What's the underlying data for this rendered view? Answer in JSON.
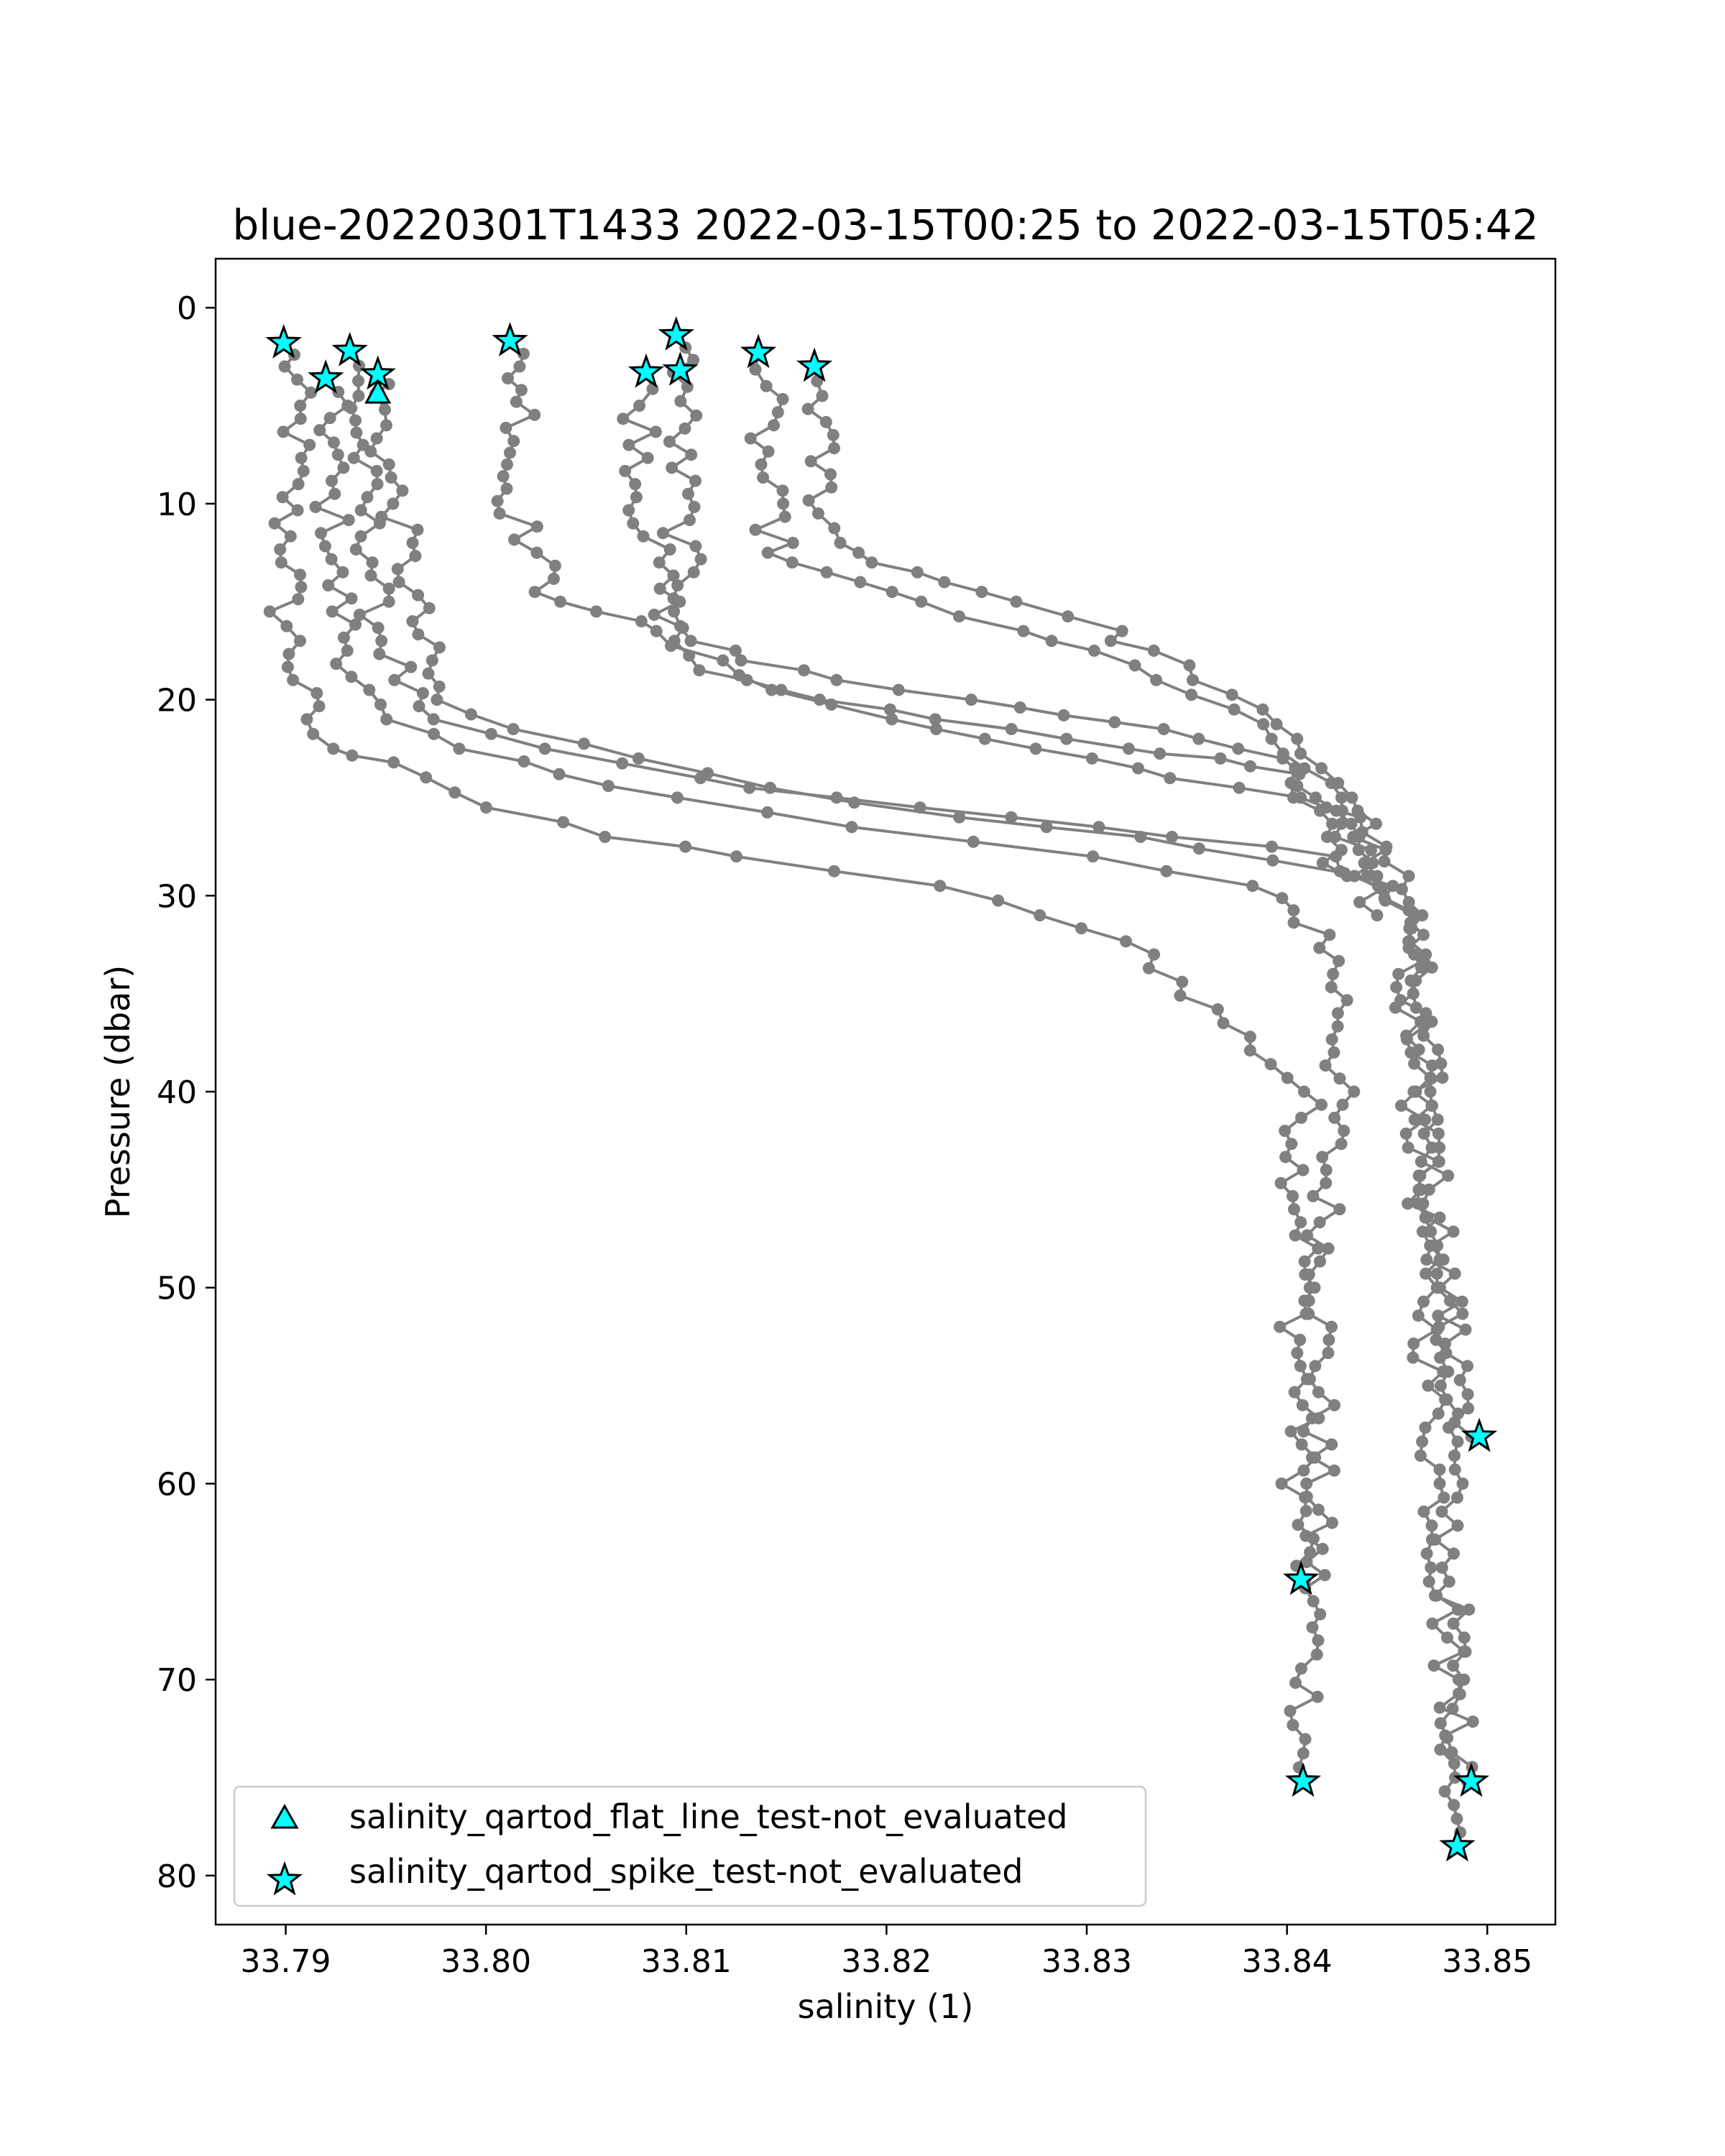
{
  "chart_data": {
    "type": "line",
    "title": "blue-20220301T1433 2022-03-15T00:25 to 2022-03-15T05:42",
    "xlabel": "salinity (1)",
    "ylabel": "Pressure (dbar)",
    "xlim": [
      33.7865,
      33.8534
    ],
    "ylim": [
      82.5,
      -2.5
    ],
    "y_inverted": true,
    "grid": false,
    "x_ticks": [
      "33.79",
      "33.80",
      "33.81",
      "33.82",
      "33.83",
      "33.84",
      "33.85"
    ],
    "x_tick_values": [
      33.79,
      33.8,
      33.81,
      33.82,
      33.83,
      33.84,
      33.85
    ],
    "y_ticks": [
      "0",
      "10",
      "20",
      "30",
      "40",
      "50",
      "60",
      "70",
      "80"
    ],
    "y_tick_values": [
      0,
      10,
      20,
      30,
      40,
      50,
      60,
      70,
      80
    ],
    "line_color": "#808080",
    "marker_color": "#00ffff",
    "legend": {
      "placement": "lower left",
      "entries": [
        {
          "label": "salinity_qartod_flat_line_test-not_evaluated",
          "marker": "triangle"
        },
        {
          "label": "salinity_qartod_spike_test-not_evaluated",
          "marker": "star"
        }
      ]
    },
    "series": [
      {
        "points": [
          [
            33.79,
            1.8
          ],
          [
            33.7903,
            3.0
          ],
          [
            33.7904,
            5.0
          ],
          [
            33.7905,
            7.0
          ],
          [
            33.7902,
            9.0
          ],
          [
            33.79,
            11.0
          ],
          [
            33.7903,
            13.0
          ],
          [
            33.7899,
            15.5
          ],
          [
            33.7903,
            17.0
          ],
          [
            33.7906,
            19.0
          ],
          [
            33.7912,
            21.0
          ],
          [
            33.7918,
            22.5
          ],
          [
            33.796,
            23.2
          ],
          [
            33.8,
            25.5
          ],
          [
            33.806,
            27.0
          ],
          [
            33.813,
            28.0
          ],
          [
            33.822,
            29.5
          ],
          [
            33.828,
            31.0
          ],
          [
            33.833,
            33.0
          ],
          [
            33.837,
            36.5
          ],
          [
            33.841,
            40.0
          ],
          [
            33.8405,
            44.0
          ],
          [
            33.841,
            48.0
          ],
          [
            33.8405,
            52.0
          ],
          [
            33.8408,
            56.0
          ],
          [
            33.8406,
            60.0
          ],
          [
            33.8409,
            64.9
          ]
        ]
      },
      {
        "points": [
          [
            33.792,
            3.6
          ],
          [
            33.7922,
            5.0
          ],
          [
            33.7923,
            7.5
          ],
          [
            33.7921,
            9.5
          ],
          [
            33.7925,
            11.5
          ],
          [
            33.7923,
            13.5
          ],
          [
            33.7928,
            15.5
          ],
          [
            33.7932,
            17.5
          ],
          [
            33.7938,
            19.5
          ],
          [
            33.7945,
            21.0
          ],
          [
            33.7985,
            22.5
          ],
          [
            33.804,
            23.8
          ],
          [
            33.81,
            25.0
          ],
          [
            33.818,
            26.5
          ],
          [
            33.83,
            28.0
          ],
          [
            33.838,
            29.5
          ],
          [
            33.842,
            32.0
          ],
          [
            33.8428,
            36.0
          ],
          [
            33.8425,
            40.0
          ],
          [
            33.842,
            44.0
          ],
          [
            33.8418,
            50.0
          ],
          [
            33.8416,
            56.0
          ],
          [
            33.8414,
            62.0
          ],
          [
            33.8412,
            68.0
          ],
          [
            33.8408,
            75.2
          ]
        ]
      },
      {
        "points": [
          [
            33.7932,
            2.2
          ],
          [
            33.7935,
            4.5
          ],
          [
            33.7937,
            7.0
          ],
          [
            33.7938,
            9.0
          ],
          [
            33.794,
            11.0
          ],
          [
            33.7945,
            13.0
          ],
          [
            33.7943,
            15.0
          ],
          [
            33.795,
            17.0
          ],
          [
            33.7958,
            19.0
          ],
          [
            33.7965,
            21.0
          ],
          [
            33.803,
            22.5
          ],
          [
            33.81,
            24.0
          ],
          [
            33.817,
            25.0
          ],
          [
            33.826,
            26.0
          ],
          [
            33.835,
            27.0
          ],
          [
            33.842,
            28.0
          ],
          [
            33.845,
            29.5
          ],
          [
            33.846,
            32.0
          ],
          [
            33.8462,
            36.0
          ],
          [
            33.8468,
            40.0
          ],
          [
            33.8472,
            45.0
          ],
          [
            33.8478,
            50.0
          ],
          [
            33.8485,
            54.0
          ],
          [
            33.8492,
            57.6
          ]
        ]
      },
      {
        "points": [
          [
            33.7946,
            3.4
          ],
          [
            33.7946,
            4.4
          ],
          [
            33.7948,
            6.0
          ],
          [
            33.795,
            8.0
          ],
          [
            33.7955,
            10.0
          ],
          [
            33.7958,
            12.0
          ],
          [
            33.7962,
            14.0
          ],
          [
            33.7965,
            16.0
          ],
          [
            33.797,
            18.0
          ],
          [
            33.7975,
            20.0
          ],
          [
            33.801,
            21.5
          ],
          [
            33.808,
            23.0
          ],
          [
            33.815,
            24.5
          ],
          [
            33.823,
            26.0
          ],
          [
            33.833,
            27.0
          ],
          [
            33.84,
            28.2
          ],
          [
            33.844,
            29.5
          ],
          [
            33.8455,
            31.0
          ],
          [
            33.846,
            35.0
          ],
          [
            33.8465,
            40.0
          ],
          [
            33.8468,
            45.0
          ],
          [
            33.847,
            50.0
          ],
          [
            33.8472,
            55.0
          ],
          [
            33.8475,
            60.0
          ],
          [
            33.8478,
            65.0
          ],
          [
            33.8482,
            70.0
          ],
          [
            33.849,
            75.2
          ]
        ]
      },
      {
        "points": [
          [
            33.8012,
            1.7
          ],
          [
            33.8014,
            3.0
          ],
          [
            33.802,
            4.8
          ],
          [
            33.8018,
            6.8
          ],
          [
            33.801,
            8.6
          ],
          [
            33.8015,
            10.5
          ],
          [
            33.8025,
            12.5
          ],
          [
            33.803,
            14.5
          ],
          [
            33.806,
            15.5
          ],
          [
            33.808,
            16.5
          ],
          [
            33.811,
            18.0
          ],
          [
            33.815,
            19.5
          ],
          [
            33.82,
            21.0
          ],
          [
            33.825,
            22.0
          ],
          [
            33.83,
            23.0
          ],
          [
            33.835,
            24.0
          ],
          [
            33.84,
            25.0
          ],
          [
            33.843,
            26.0
          ],
          [
            33.845,
            27.5
          ],
          [
            33.846,
            29.0
          ],
          [
            33.8462,
            31.0
          ],
          [
            33.8465,
            35.0
          ],
          [
            33.847,
            40.0
          ],
          [
            33.8475,
            45.0
          ],
          [
            33.848,
            50.0
          ],
          [
            33.8482,
            55.0
          ],
          [
            33.848,
            60.0
          ],
          [
            33.8482,
            65.0
          ],
          [
            33.8484,
            70.0
          ],
          [
            33.8486,
            75.0
          ],
          [
            33.8485,
            78.5
          ]
        ]
      },
      {
        "points": [
          [
            33.808,
            3.3
          ],
          [
            33.8076,
            5.0
          ],
          [
            33.808,
            7.0
          ],
          [
            33.8077,
            9.0
          ],
          [
            33.808,
            11.0
          ],
          [
            33.8085,
            13.0
          ],
          [
            33.809,
            15.0
          ],
          [
            33.8095,
            17.0
          ],
          [
            33.811,
            18.5
          ],
          [
            33.814,
            19.5
          ],
          [
            33.82,
            20.5
          ],
          [
            33.826,
            21.5
          ],
          [
            33.832,
            22.5
          ],
          [
            33.837,
            23.0
          ],
          [
            33.84,
            23.8
          ],
          [
            33.842,
            25.0
          ],
          [
            33.843,
            27.0
          ],
          [
            33.844,
            29.0
          ],
          [
            33.8445,
            31.0
          ]
        ]
      },
      {
        "points": [
          [
            33.8095,
            1.4
          ],
          [
            33.81,
            3.3
          ],
          [
            33.8098,
            5.5
          ],
          [
            33.8096,
            7.5
          ],
          [
            33.8098,
            9.5
          ],
          [
            33.8097,
            11.5
          ],
          [
            33.8099,
            13.5
          ],
          [
            33.81,
            15.5
          ],
          [
            33.8105,
            17.0
          ],
          [
            33.813,
            18.0
          ],
          [
            33.818,
            19.0
          ],
          [
            33.824,
            20.0
          ],
          [
            33.829,
            20.8
          ],
          [
            33.834,
            21.5
          ],
          [
            33.838,
            22.5
          ],
          [
            33.84,
            23.5
          ],
          [
            33.841,
            25.0
          ],
          [
            33.842,
            27.0
          ],
          [
            33.843,
            29.0
          ]
        ]
      },
      {
        "points": [
          [
            33.8136,
            2.3
          ],
          [
            33.814,
            4.0
          ],
          [
            33.8138,
            6.0
          ],
          [
            33.8138,
            8.0
          ],
          [
            33.814,
            10.0
          ],
          [
            33.8145,
            12.0
          ],
          [
            33.815,
            13.0
          ],
          [
            33.818,
            14.0
          ],
          [
            33.822,
            15.0
          ],
          [
            33.826,
            16.5
          ],
          [
            33.83,
            17.5
          ],
          [
            33.834,
            19.0
          ],
          [
            33.837,
            20.5
          ],
          [
            33.839,
            22.0
          ],
          [
            33.841,
            23.5
          ],
          [
            33.842,
            25.0
          ],
          [
            33.843,
            27.0
          ],
          [
            33.844,
            29.0
          ]
        ]
      },
      {
        "points": [
          [
            33.8164,
            3.0
          ],
          [
            33.8168,
            4.5
          ],
          [
            33.8166,
            6.5
          ],
          [
            33.8167,
            8.5
          ],
          [
            33.817,
            10.5
          ],
          [
            33.8175,
            12.0
          ],
          [
            33.82,
            13.0
          ],
          [
            33.823,
            14.0
          ],
          [
            33.827,
            15.0
          ],
          [
            33.831,
            16.5
          ],
          [
            33.833,
            17.5
          ],
          [
            33.836,
            19.0
          ],
          [
            33.838,
            20.5
          ],
          [
            33.84,
            22.0
          ],
          [
            33.842,
            23.5
          ],
          [
            33.8435,
            25.0
          ],
          [
            33.844,
            27.0
          ],
          [
            33.8445,
            29.0
          ]
        ]
      }
    ],
    "flat_line_points": [
      [
        33.7946,
        4.4
      ]
    ],
    "spike_points": [
      [
        33.7899,
        1.8
      ],
      [
        33.792,
        3.6
      ],
      [
        33.7932,
        2.2
      ],
      [
        33.7946,
        3.4
      ],
      [
        33.8012,
        1.7
      ],
      [
        33.808,
        3.3
      ],
      [
        33.8095,
        1.4
      ],
      [
        33.8097,
        3.2
      ],
      [
        33.8136,
        2.3
      ],
      [
        33.8164,
        3.0
      ],
      [
        33.8496,
        57.6
      ],
      [
        33.8407,
        64.9
      ],
      [
        33.8408,
        75.2
      ],
      [
        33.8492,
        75.2
      ],
      [
        33.8485,
        78.5
      ]
    ]
  }
}
